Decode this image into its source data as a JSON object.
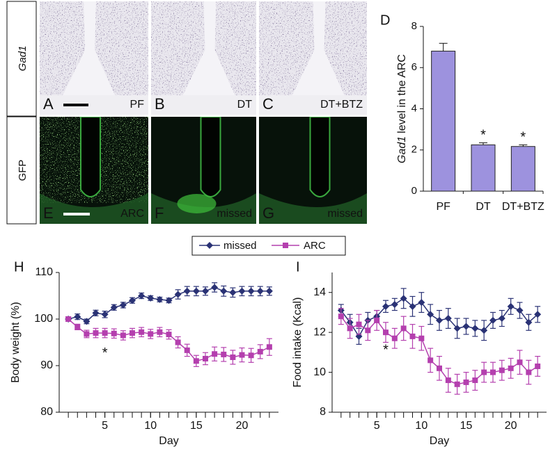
{
  "figure": {
    "row_labels": [
      "Gad1",
      "GFP"
    ],
    "panels": [
      {
        "letter": "A",
        "caption": "PF"
      },
      {
        "letter": "B",
        "caption": "DT"
      },
      {
        "letter": "C",
        "caption": "DT+BTZ"
      },
      {
        "letter": "E",
        "caption": "ARC"
      },
      {
        "letter": "F",
        "caption": "missed"
      },
      {
        "letter": "G",
        "caption": "missed"
      }
    ]
  },
  "chart_data": [
    {
      "type": "bar",
      "panel": "D",
      "ylabel": {
        "italic": "Gad1",
        "rest": "level in the ARC"
      },
      "categories": [
        "PF",
        "DT",
        "DT+BTZ"
      ],
      "values": [
        6.8,
        2.25,
        2.17
      ],
      "errors": [
        0.38,
        0.1,
        0.08
      ],
      "markers": [
        null,
        "*",
        "*"
      ],
      "color": "#9d92de",
      "ylim": [
        0,
        8
      ],
      "yticks": [
        0,
        2,
        4,
        6,
        8
      ]
    },
    {
      "type": "line",
      "panel": "H",
      "xlabel": "Day",
      "ylabel": "Body weight  (%)",
      "x": [
        1,
        2,
        3,
        4,
        5,
        6,
        7,
        8,
        9,
        10,
        11,
        12,
        13,
        14,
        15,
        16,
        17,
        18,
        19,
        20,
        21,
        22,
        23
      ],
      "series": [
        {
          "name": "missed",
          "color": "#2a3275",
          "marker": "diamond",
          "values": [
            100,
            100.5,
            99.5,
            101.3,
            101,
            102.5,
            103,
            104,
            105,
            104.5,
            104.2,
            104,
            105.3,
            106,
            106,
            106,
            106.8,
            106,
            105.7,
            106,
            106,
            106,
            106
          ],
          "errors": [
            0.5,
            0.6,
            0.5,
            0.6,
            0.7,
            0.6,
            0.6,
            0.6,
            0.6,
            0.5,
            0.5,
            0.5,
            1,
            1,
            1,
            0.9,
            1,
            1.1,
            1,
            1,
            1,
            1,
            0.9
          ]
        },
        {
          "name": "ARC",
          "color": "#b43fae",
          "marker": "square",
          "values": [
            100,
            98.3,
            96.8,
            97,
            97,
            96.9,
            96.5,
            97,
            97.2,
            96.8,
            97.2,
            96.7,
            95,
            93.3,
            91,
            91.5,
            92.5,
            92.4,
            91.8,
            92.3,
            92.2,
            93,
            94
          ],
          "errors": [
            0.5,
            0.6,
            0.8,
            1,
            1,
            1,
            1,
            1,
            1,
            1,
            1,
            1,
            1.2,
            1.3,
            1.2,
            1.3,
            1.5,
            1.5,
            1.5,
            1.5,
            1.5,
            1.5,
            1.8
          ]
        }
      ],
      "annotations": [
        {
          "text": "*",
          "x": 5,
          "y": 92.6
        }
      ],
      "xlim": [
        0,
        24
      ],
      "xticks": [
        5,
        10,
        15,
        20
      ],
      "ylim": [
        80,
        110
      ],
      "yticks": [
        80,
        90,
        100,
        110
      ]
    },
    {
      "type": "line",
      "panel": "I",
      "xlabel": "Day",
      "ylabel": "Food intake (Kcal)",
      "x": [
        1,
        2,
        3,
        4,
        5,
        6,
        7,
        8,
        9,
        10,
        11,
        12,
        13,
        14,
        15,
        16,
        17,
        18,
        19,
        20,
        21,
        22,
        23
      ],
      "series": [
        {
          "name": "missed",
          "color": "#2a3275",
          "marker": "diamond",
          "values": [
            13.1,
            12.5,
            11.8,
            12.6,
            12.8,
            13.3,
            13.4,
            13.7,
            13.3,
            13.5,
            12.9,
            12.6,
            12.7,
            12.2,
            12.3,
            12.2,
            12.1,
            12.6,
            12.7,
            13.3,
            13.1,
            12.5,
            12.9
          ],
          "errors": [
            0.3,
            0.4,
            0.4,
            0.4,
            0.3,
            0.3,
            0.3,
            0.5,
            0.5,
            0.5,
            0.5,
            0.5,
            0.5,
            0.5,
            0.4,
            0.4,
            0.5,
            0.4,
            0.4,
            0.4,
            0.4,
            0.4,
            0.4
          ]
        },
        {
          "name": "ARC",
          "color": "#b43fae",
          "marker": "square",
          "values": [
            12.8,
            12.2,
            12.4,
            12.1,
            12.6,
            12.0,
            11.7,
            12.2,
            11.8,
            11.7,
            10.6,
            10.2,
            9.6,
            9.4,
            9.5,
            9.6,
            10.0,
            10.0,
            10.1,
            10.2,
            10.5,
            10.0,
            10.3
          ],
          "errors": [
            0.4,
            0.5,
            0.5,
            0.5,
            0.5,
            0.5,
            0.5,
            0.6,
            0.6,
            0.6,
            0.6,
            0.6,
            0.6,
            0.5,
            0.5,
            0.5,
            0.5,
            0.5,
            0.5,
            0.5,
            0.6,
            0.6,
            0.5
          ]
        }
      ],
      "annotations": [
        {
          "text": "*",
          "x": 6,
          "y": 11.1
        }
      ],
      "xlim": [
        0,
        24
      ],
      "xticks": [
        5,
        10,
        15,
        20
      ],
      "ylim": [
        8,
        15
      ],
      "yticks": [
        8,
        10,
        12,
        14
      ]
    }
  ]
}
